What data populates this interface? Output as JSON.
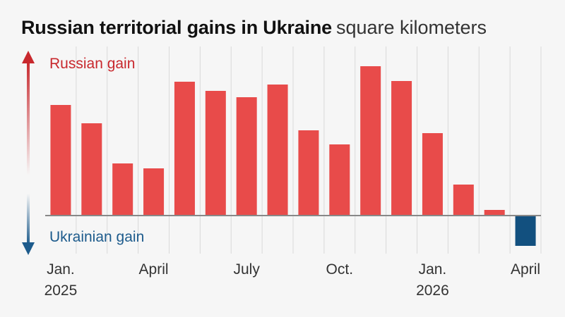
{
  "title": "Russian territorial gains in Ukraine",
  "subtitle": "square kilometers",
  "colors": {
    "gain": "#e84b4a",
    "loss": "#12507f",
    "arrow_up": "#c8282d",
    "arrow_down": "#1d5b8c",
    "baseline": "#888888",
    "grid": "#d9d9d9"
  },
  "labels": {
    "russian_gain": "Russian gain",
    "ukrainian_gain": "Ukrainian gain"
  },
  "chart_data": {
    "type": "bar",
    "title": "Russian territorial gains in Ukraine",
    "subtitle": "square kilometers",
    "categories": [
      "Jan. 2025",
      "Feb. 2025",
      "Mar. 2025",
      "Apr. 2025",
      "May 2025",
      "Jun. 2025",
      "Jul. 2025",
      "Aug. 2025",
      "Sep. 2025",
      "Oct. 2025",
      "Nov. 2025",
      "Dec. 2025",
      "Jan. 2026",
      "Feb. 2026",
      "Mar. 2026",
      "Apr. 2026"
    ],
    "values": [
      157,
      131,
      74,
      67,
      190,
      177,
      168,
      186,
      121,
      101,
      212,
      191,
      117,
      44,
      8,
      -43
    ],
    "tick_labels": [
      {
        "category": "Jan. 2025",
        "lines": [
          "Jan.",
          "2025"
        ]
      },
      {
        "category": "Apr. 2025",
        "lines": [
          "April"
        ]
      },
      {
        "category": "Jul. 2025",
        "lines": [
          "July"
        ]
      },
      {
        "category": "Oct. 2025",
        "lines": [
          "Oct."
        ]
      },
      {
        "category": "Jan. 2026",
        "lines": [
          "Jan.",
          "2026"
        ]
      },
      {
        "category": "Apr. 2026",
        "lines": [
          "April"
        ]
      }
    ],
    "ylim": [
      -45,
      215
    ],
    "grid": true,
    "grid_axis": "x",
    "xlabel": "",
    "ylabel": ""
  }
}
